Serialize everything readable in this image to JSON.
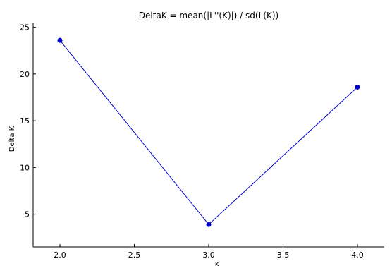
{
  "chart_data": {
    "type": "line",
    "title": "DeltaK = mean(|L''(K)|) / sd(L(K))",
    "xlabel": "K",
    "ylabel": "Delta K",
    "x": [
      2.0,
      3.0,
      4.0
    ],
    "series": [
      {
        "values": [
          23.6,
          3.9,
          18.6
        ],
        "color": "#0000cc"
      }
    ],
    "xlim": [
      1.82,
      4.18
    ],
    "ylim": [
      1.5,
      25.5
    ],
    "xticks": [
      2.0,
      2.5,
      3.0,
      3.5,
      4.0
    ],
    "xtick_labels": [
      "2.0",
      "2.5",
      "3.0",
      "3.5",
      "4.0"
    ],
    "yticks": [
      5,
      10,
      15,
      20,
      25
    ],
    "ytick_labels": [
      "5",
      "10",
      "15",
      "20",
      "25"
    ],
    "grid": false
  }
}
